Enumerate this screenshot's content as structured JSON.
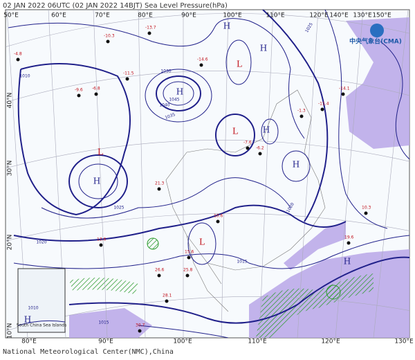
{
  "header": {
    "title": "02 JAN 2022 06UTC (02 JAN 2022 14BJT) Sea Level Pressure(hPa)",
    "logo": "中央气象台(CMA)",
    "footer": "National Meteorological Center(NMC),China",
    "inset_label": "South China Sea Islands"
  },
  "axes": {
    "top": [
      "50°E",
      "60°E",
      "70°E",
      "80°E",
      "90°E",
      "100°E",
      "110°E",
      "120°E",
      "130°E",
      "140°E",
      "150°E"
    ],
    "bottom": [
      "80°E",
      "90°E",
      "100°E",
      "110°E",
      "120°E",
      "130°E"
    ],
    "left": [
      "40°N",
      "30°N",
      "20°N",
      "10°N"
    ]
  },
  "centers": [
    "H",
    "H",
    "L",
    "L",
    "H",
    "H",
    "H",
    "L",
    "H",
    "H",
    "H",
    "L"
  ],
  "isobar_labels": [
    "1030",
    "1035",
    "1040",
    "1045",
    "1025",
    "1020",
    "1015",
    "1010",
    "1020",
    "1025",
    "1010",
    "1015"
  ],
  "stations": [
    "-10.3",
    "-13.7",
    "-14.6",
    "-6.8",
    "-11.5",
    "-9.6",
    "-4.8",
    "-6.2",
    "-7.6",
    "-1.3",
    "10.6",
    "13.6",
    "15.6",
    "21.3",
    "26.6",
    "25.8",
    "28.1",
    "30.7",
    "-11.4",
    "-14.1",
    "10.3",
    "19.6"
  ]
}
